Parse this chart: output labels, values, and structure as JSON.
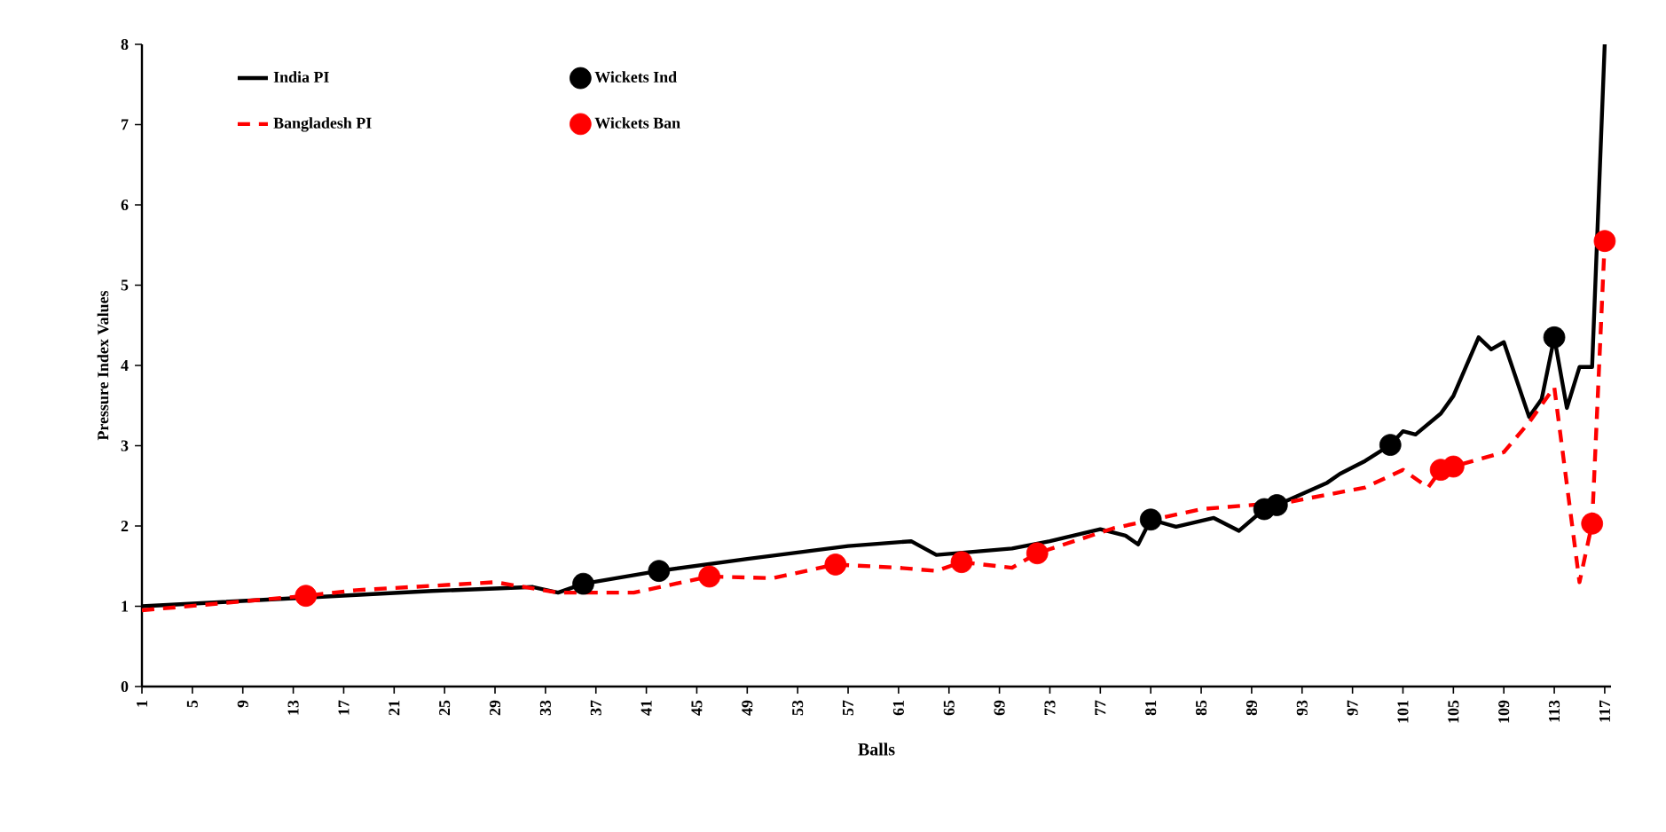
{
  "chart_data": {
    "type": "line",
    "xlabel": "Balls",
    "ylabel": "Pressure Index Values",
    "xlim": [
      1,
      117.5
    ],
    "xticks": [
      1,
      5,
      9,
      13,
      17,
      21,
      25,
      29,
      33,
      37,
      41,
      45,
      49,
      53,
      57,
      61,
      65,
      69,
      73,
      77,
      81,
      85,
      89,
      93,
      97,
      101,
      105,
      109,
      113,
      117
    ],
    "ylim": [
      0,
      8
    ],
    "yticks": [
      0,
      1,
      2,
      3,
      4,
      5,
      6,
      7,
      8
    ],
    "grid": false,
    "legend": "top left",
    "series": [
      {
        "name": "India PI",
        "color": "#000000",
        "line_style": "solid",
        "marker": "none",
        "x": [
          1,
          24,
          32,
          34,
          36,
          42,
          49,
          57,
          62,
          64,
          70,
          73,
          77,
          79,
          80,
          81,
          83,
          86,
          88,
          90,
          91,
          95,
          96,
          98,
          100,
          101,
          102,
          104,
          105,
          107,
          108,
          109,
          111,
          112,
          113,
          114,
          115,
          116,
          117
        ],
        "values": [
          1.0,
          1.19,
          1.24,
          1.17,
          1.28,
          1.44,
          1.59,
          1.75,
          1.81,
          1.64,
          1.72,
          1.81,
          1.96,
          1.88,
          1.77,
          2.08,
          1.99,
          2.1,
          1.94,
          2.21,
          2.26,
          2.54,
          2.65,
          2.81,
          3.01,
          3.18,
          3.14,
          3.4,
          3.62,
          4.35,
          4.2,
          4.29,
          3.36,
          3.58,
          4.35,
          3.47,
          3.98,
          3.98,
          8.0
        ]
      },
      {
        "name": "Bangladesh PI",
        "color": "#ff0000",
        "line_style": "dashed",
        "marker": "none",
        "x": [
          1,
          14,
          18,
          29,
          34,
          40,
          46,
          51,
          56,
          61,
          64,
          66,
          70,
          72,
          78,
          85,
          92,
          98,
          101,
          103,
          104,
          105,
          109,
          111,
          113,
          115,
          116,
          117
        ],
        "values": [
          0.95,
          1.13,
          1.2,
          1.3,
          1.17,
          1.17,
          1.37,
          1.35,
          1.52,
          1.48,
          1.44,
          1.55,
          1.48,
          1.66,
          1.97,
          2.21,
          2.3,
          2.48,
          2.7,
          2.48,
          2.7,
          2.74,
          2.92,
          3.29,
          3.73,
          1.3,
          2.03,
          5.55
        ]
      },
      {
        "name": "Wickets Ind",
        "type": "scatter",
        "color": "#000000",
        "marker": "circle",
        "x": [
          36,
          42,
          81,
          90,
          91,
          100,
          113
        ],
        "values": [
          1.28,
          1.44,
          2.08,
          2.21,
          2.26,
          3.01,
          4.35
        ]
      },
      {
        "name": "Wickets Ban",
        "type": "scatter",
        "color": "#ff0000",
        "marker": "circle",
        "x": [
          14,
          46,
          56,
          66,
          72,
          104,
          105,
          116,
          117
        ],
        "values": [
          1.13,
          1.37,
          1.52,
          1.55,
          1.66,
          2.7,
          2.74,
          2.03,
          5.55
        ]
      }
    ]
  }
}
